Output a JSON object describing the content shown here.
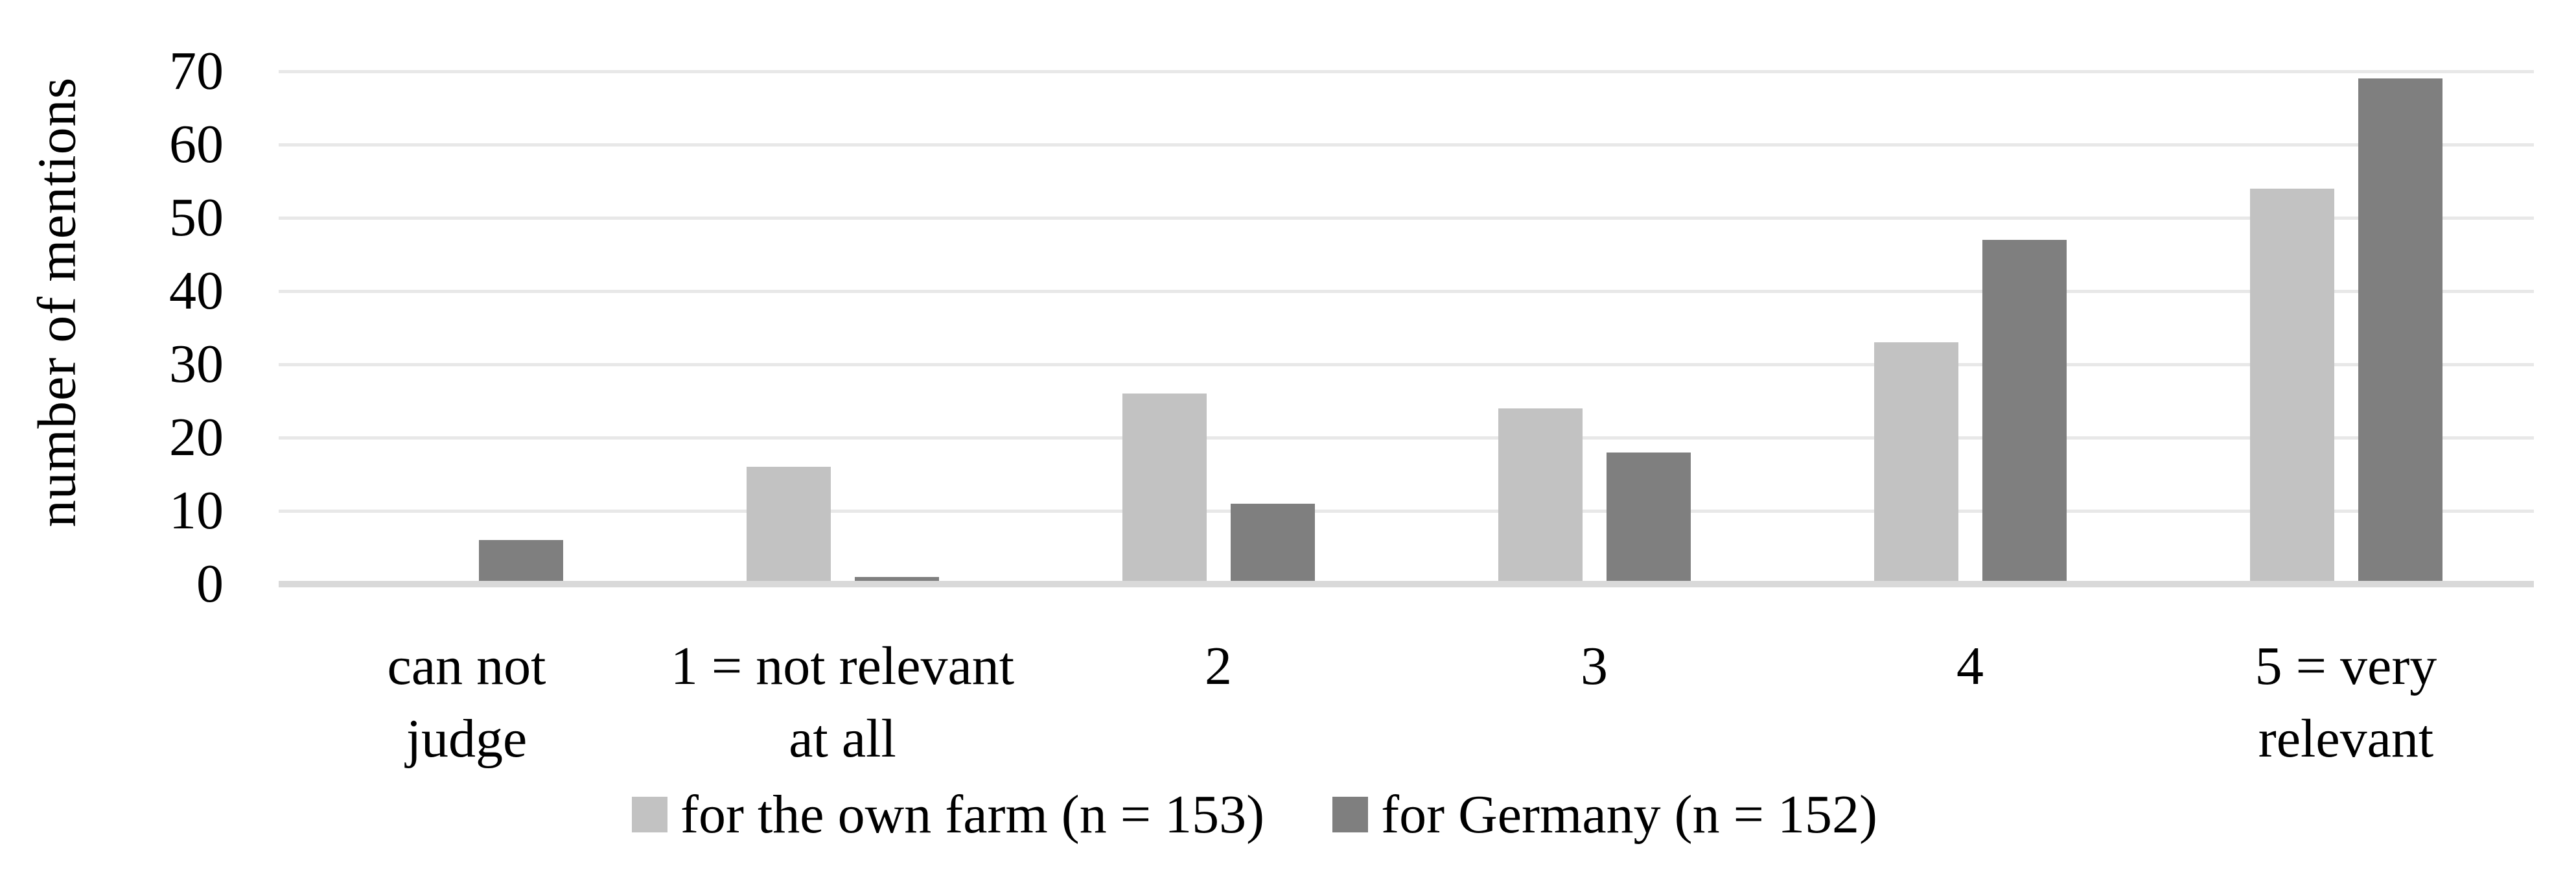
{
  "chart_data": {
    "type": "bar",
    "title": "",
    "ylabel": "number of mentions",
    "xlabel": "",
    "ylim": [
      0,
      70
    ],
    "yticks": [
      0,
      10,
      20,
      30,
      40,
      50,
      60,
      70
    ],
    "grid": true,
    "legend_position": "bottom",
    "categories": [
      {
        "label": "can not judge",
        "lines": [
          "can not",
          "judge"
        ]
      },
      {
        "label": "1 = not relevant at all",
        "lines": [
          "1 = not relevant",
          "at all"
        ]
      },
      {
        "label": "2",
        "lines": [
          "2"
        ]
      },
      {
        "label": "3",
        "lines": [
          "3"
        ]
      },
      {
        "label": "4",
        "lines": [
          "4"
        ]
      },
      {
        "label": "5 = very relevant",
        "lines": [
          "5 = very",
          "relevant"
        ]
      }
    ],
    "series": [
      {
        "name": "for the own farm (n = 153)",
        "color": "#c2c2c2",
        "values": [
          0,
          16,
          26,
          24,
          33,
          54
        ]
      },
      {
        "name": "for Germany (n = 152)",
        "color": "#7f7f7f",
        "values": [
          6,
          1,
          11,
          18,
          47,
          69
        ]
      }
    ]
  },
  "colors": {
    "background": "#ffffff",
    "gridline": "#e8e8e8",
    "axis_line": "#d9d9d9",
    "text": "#000000",
    "series_own_farm": "#c2c2c2",
    "series_germany": "#7f7f7f"
  }
}
